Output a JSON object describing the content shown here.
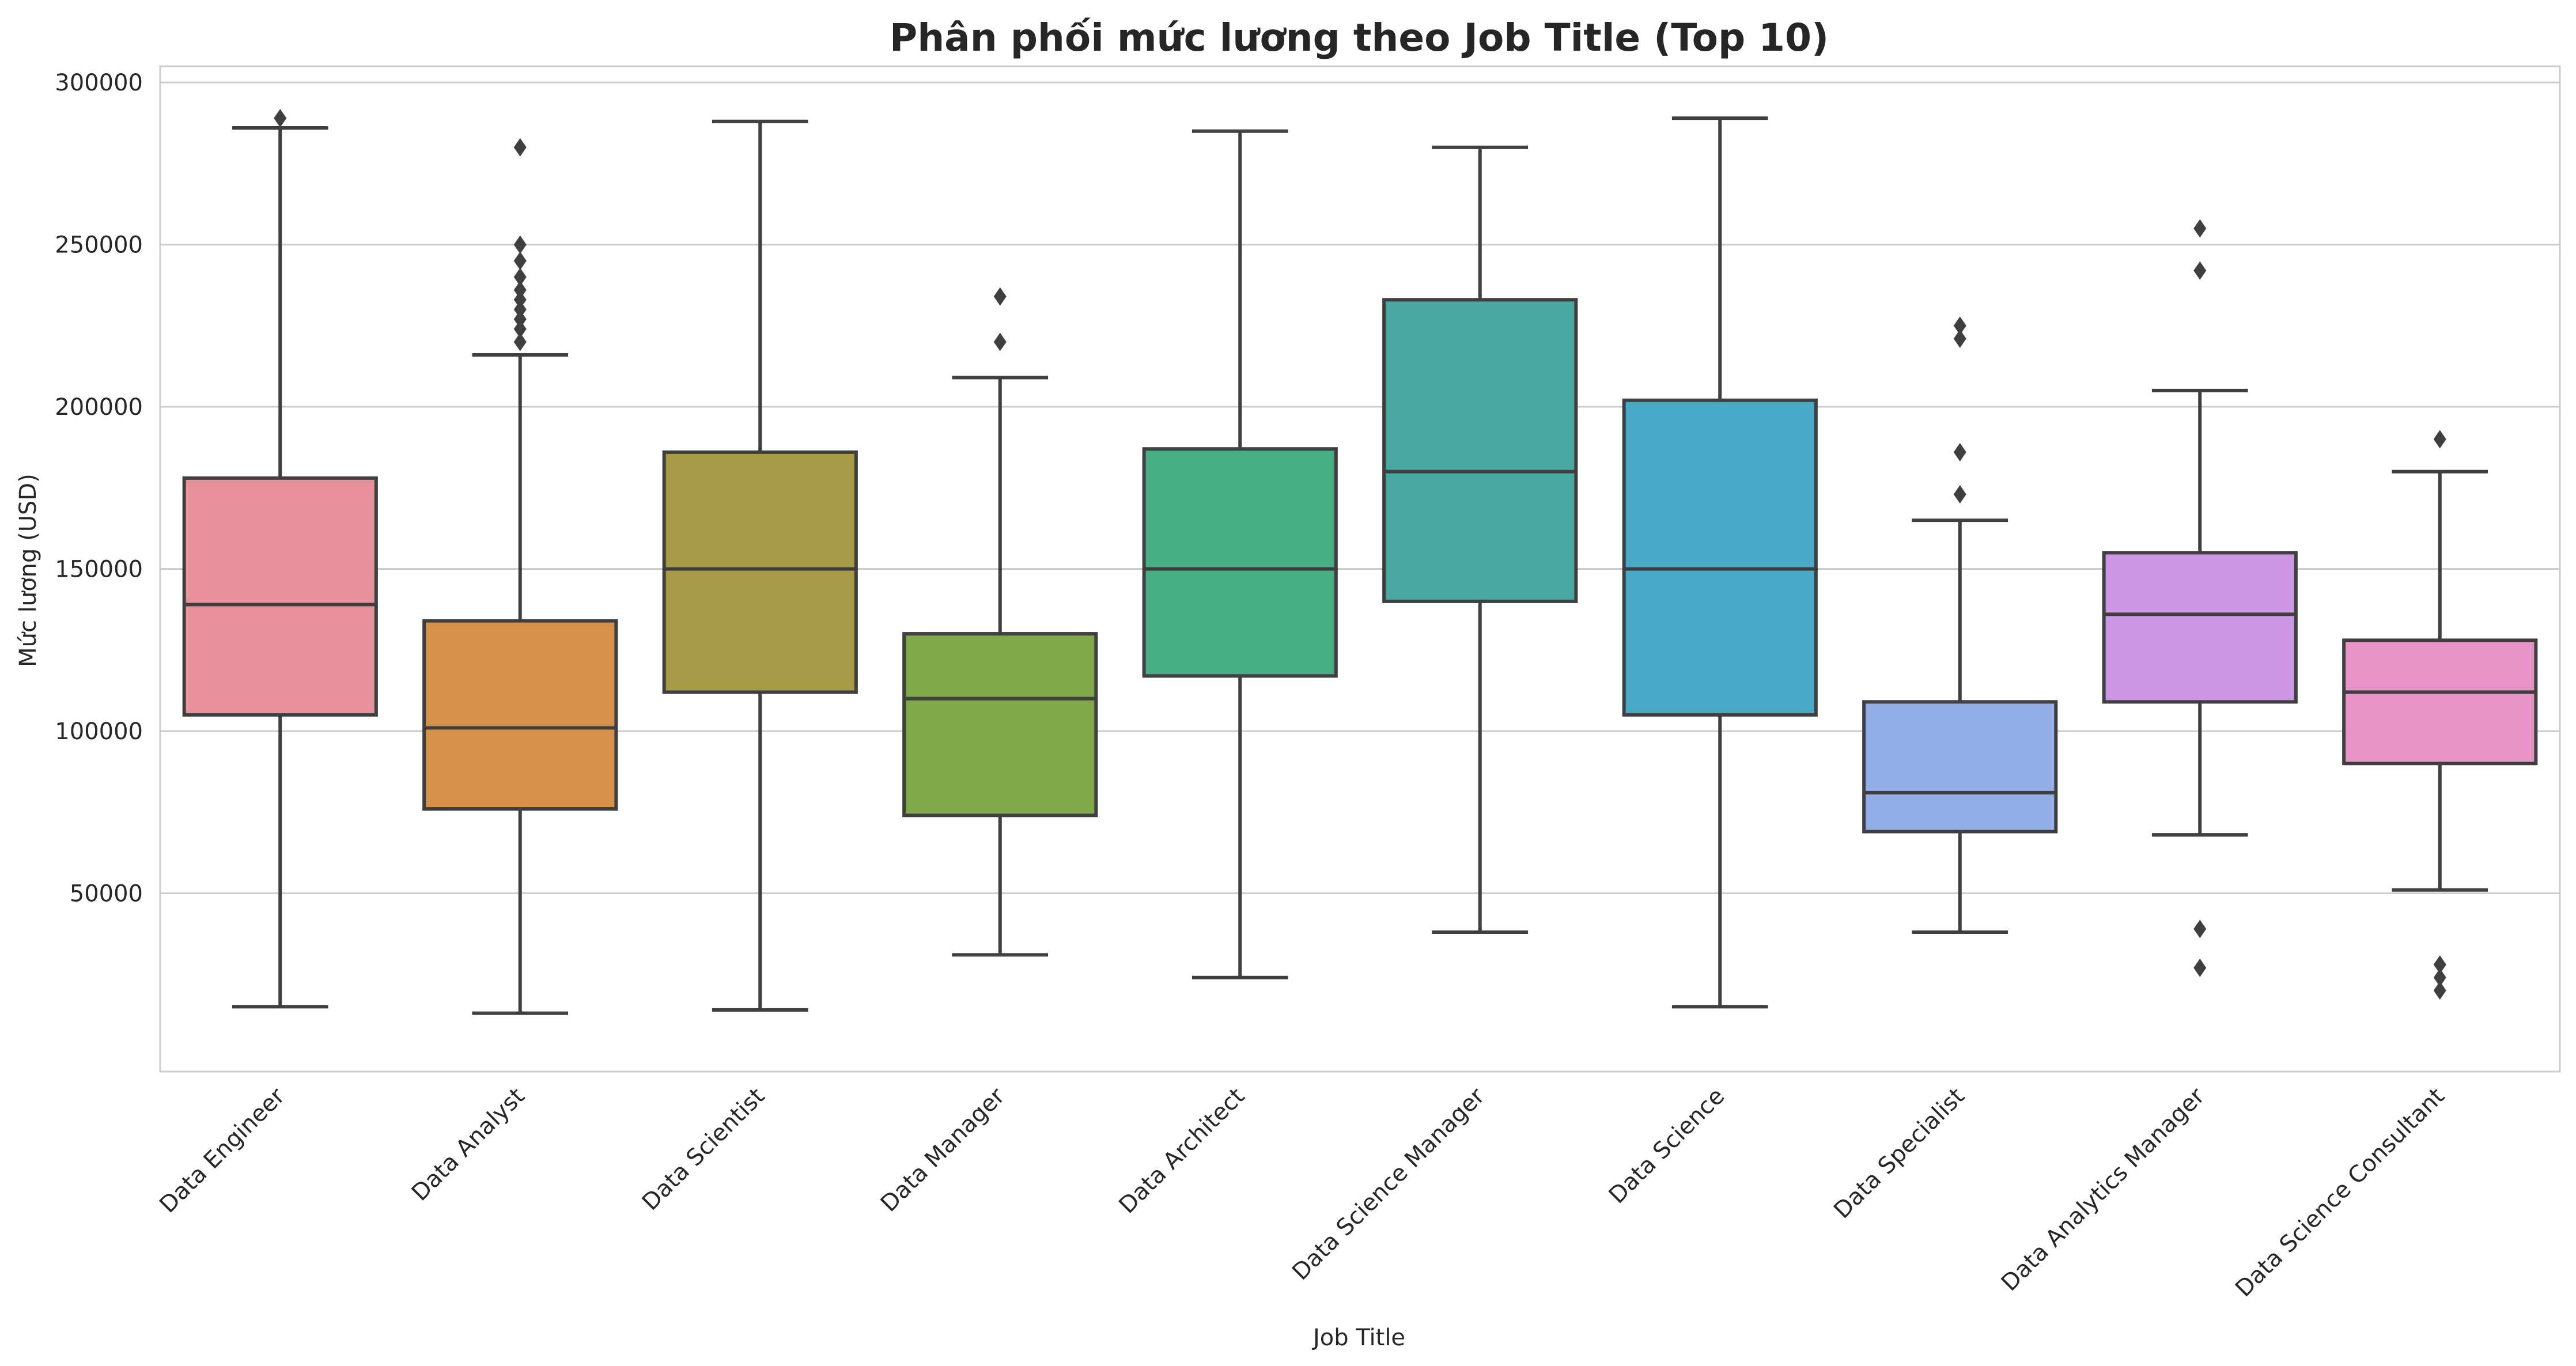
{
  "chart_data": {
    "type": "box",
    "title": "Phân phối mức lương theo Job Title (Top 10)",
    "xlabel": "Job Title",
    "ylabel": "Mức lương (USD)",
    "ylim": [
      -5000,
      305000
    ],
    "yticks": [
      "50000",
      "100000",
      "150000",
      "200000",
      "250000",
      "300000"
    ],
    "grid": "horizontal",
    "categories": [
      "Data Engineer",
      "Data Analyst",
      "Data Scientist",
      "Data Manager",
      "Data Architect",
      "Data Science Manager",
      "Data Science",
      "Data Specialist",
      "Data Analytics Manager",
      "Data Science Consultant"
    ],
    "boxes": [
      {
        "whisker_low": 15000,
        "q1": 105000,
        "median": 139000,
        "q3": 178000,
        "whisker_high": 286000,
        "outliers": [
          289000
        ],
        "color": "#E8919A"
      },
      {
        "whisker_low": 13000,
        "q1": 76000,
        "median": 101000,
        "q3": 134000,
        "whisker_high": 216000,
        "outliers": [
          220000,
          224000,
          227000,
          230000,
          233000,
          236000,
          240000,
          245000,
          250000,
          280000
        ],
        "color": "#D6904A"
      },
      {
        "whisker_low": 14000,
        "q1": 112000,
        "median": 150000,
        "q3": 186000,
        "whisker_high": 288000,
        "outliers": [],
        "color": "#A89B47"
      },
      {
        "whisker_low": 31000,
        "q1": 74000,
        "median": 110000,
        "q3": 130000,
        "whisker_high": 209000,
        "outliers": [
          220000,
          234000
        ],
        "color": "#7FA848"
      },
      {
        "whisker_low": 24000,
        "q1": 117000,
        "median": 150000,
        "q3": 187000,
        "whisker_high": 285000,
        "outliers": [],
        "color": "#47AD82"
      },
      {
        "whisker_low": 38000,
        "q1": 140000,
        "median": 180000,
        "q3": 233000,
        "whisker_high": 280000,
        "outliers": [],
        "color": "#49A8A2"
      },
      {
        "whisker_low": 15000,
        "q1": 105000,
        "median": 150000,
        "q3": 202000,
        "whisker_high": 289000,
        "outliers": [],
        "color": "#4AA9C7"
      },
      {
        "whisker_low": 38000,
        "q1": 69000,
        "median": 81000,
        "q3": 109000,
        "whisker_high": 165000,
        "outliers": [
          173000,
          186000,
          221000,
          225000
        ],
        "color": "#93AEE6"
      },
      {
        "whisker_low": 68000,
        "q1": 109000,
        "median": 136000,
        "q3": 155000,
        "whisker_high": 205000,
        "outliers": [
          27000,
          39000,
          242000,
          255000
        ],
        "color": "#CD97E6"
      },
      {
        "whisker_low": 51000,
        "q1": 90000,
        "median": 112000,
        "q3": 128000,
        "whisker_high": 180000,
        "outliers": [
          20000,
          24000,
          28000,
          190000
        ],
        "color": "#E793C8"
      }
    ],
    "colors": {
      "line": "#3f3f3f",
      "grid": "#cccccc",
      "frame": "#cccccc",
      "text": "#262626"
    }
  }
}
